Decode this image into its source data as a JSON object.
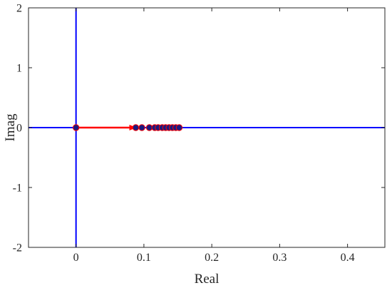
{
  "chart_data": {
    "type": "scatter",
    "title": "",
    "xlabel": "Real",
    "ylabel": "Imag",
    "xlim": [
      -0.07,
      0.455
    ],
    "ylim": [
      -2,
      2
    ],
    "xticks": [
      0,
      0.1,
      0.2,
      0.3,
      0.4
    ],
    "xtick_labels": [
      "0",
      "0.1",
      "0.2",
      "0.3",
      "0.4"
    ],
    "yticks": [
      -2,
      -1,
      0,
      1,
      2
    ],
    "ytick_labels": [
      "-2",
      "-1",
      "0",
      "1",
      "2"
    ],
    "grid": false,
    "legend": "none",
    "reference_lines": [
      {
        "orientation": "vertical",
        "value": 0,
        "color": "#0000ff"
      },
      {
        "orientation": "horizontal",
        "value": 0,
        "color": "#0000ff"
      }
    ],
    "points": {
      "x": [
        0,
        0.088,
        0.097,
        0.108,
        0.116,
        0.121,
        0.127,
        0.132,
        0.137,
        0.142,
        0.147,
        0.152
      ],
      "y": [
        0,
        0,
        0,
        0,
        0,
        0,
        0,
        0,
        0,
        0,
        0,
        0
      ],
      "fill_color": "#1a1a80",
      "edge_color": "#ff0000"
    },
    "arrow": {
      "from": [
        0,
        0
      ],
      "to": [
        0.088,
        0
      ],
      "color": "#ff0000"
    }
  }
}
